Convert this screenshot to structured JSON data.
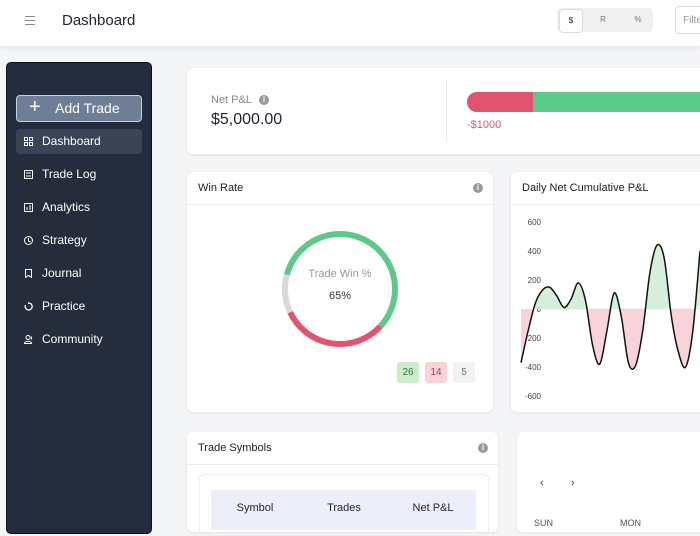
{
  "header": {
    "title": "Dashboard",
    "units": [
      "$",
      "R",
      "%"
    ],
    "filter_placeholder": "Filte"
  },
  "sidebar": {
    "button": "Add Trade",
    "items": [
      "Dashboard",
      "Trade Log",
      "Analytics",
      "Strategy",
      "Journal",
      "Practice",
      "Community"
    ]
  },
  "net_pnl": {
    "label": "Net P&L",
    "value": "$5,000.00",
    "bar_label": "-$1000"
  },
  "win_rate": {
    "title": "Win Rate",
    "center_label": "Trade Win %",
    "center_value": {
      "value": 65,
      "label": "65%"
    },
    "counts": [
      26,
      14,
      5
    ],
    "colors": [
      "#5cc98b",
      "#e05470",
      "#d9d9d9"
    ]
  },
  "chart_data": {
    "type": "line",
    "title": "Daily Net Cumulative P&L",
    "values": [
      -370,
      -150,
      40,
      130,
      150,
      90,
      10,
      70,
      180,
      60,
      -250,
      -380,
      -150,
      110,
      -50,
      -370,
      -390,
      -150,
      250,
      440,
      350,
      -50,
      -300,
      -400,
      -150,
      400
    ],
    "ylim": [
      -600,
      600
    ],
    "yticks": [
      600,
      400,
      200,
      0,
      -200,
      -400,
      -600
    ],
    "color": "#111111",
    "positive_color": "#d5efdc",
    "negative_color": "#f9d2da"
  },
  "trade_symbols": {
    "title": "Trade Symbols",
    "columns": [
      "Symbol",
      "Trades",
      "Net P&L"
    ]
  },
  "calendar": {
    "prev": "‹",
    "next": "›",
    "weekdays": [
      "SUN",
      "MON"
    ]
  }
}
